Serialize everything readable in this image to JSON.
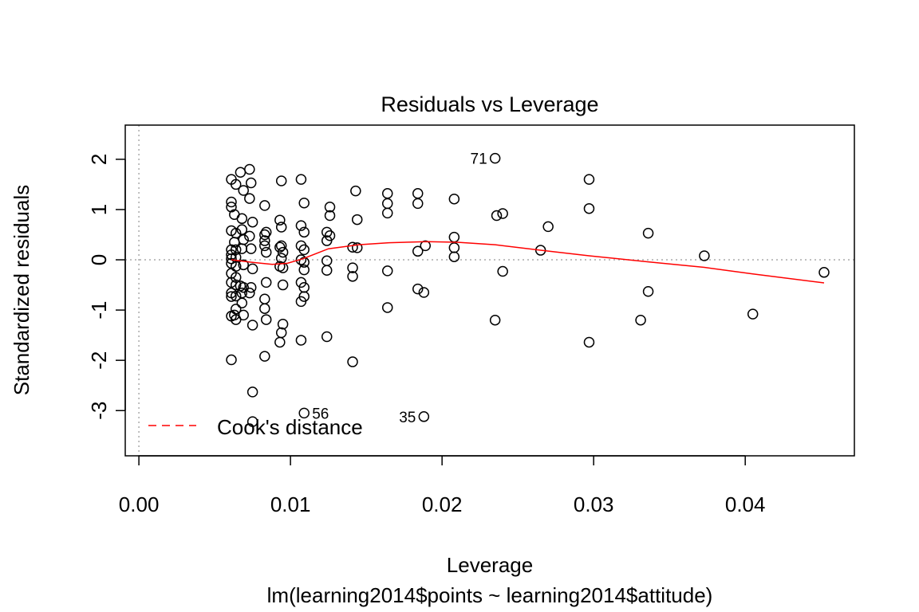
{
  "chart_data": {
    "type": "scatter",
    "title": "Residuals vs Leverage",
    "xlabel": "Leverage",
    "subtitle": "lm(learning2014$points ~ learning2014$attitude)",
    "ylabel": "Standardized residuals",
    "xlim": [
      -0.0009,
      0.0472
    ],
    "ylim": [
      -3.9,
      2.68
    ],
    "x_ticks": [
      0.0,
      0.01,
      0.02,
      0.03,
      0.04
    ],
    "x_tick_labels": [
      "0.00",
      "0.01",
      "0.02",
      "0.03",
      "0.04"
    ],
    "y_ticks": [
      -3,
      -2,
      -1,
      0,
      1,
      2
    ],
    "y_tick_labels": [
      "-3",
      "-2",
      "-1",
      "0",
      "1",
      "2"
    ],
    "reference_lines": {
      "x": 0,
      "y": 0,
      "style": "dotted",
      "color": "#aaaaaa"
    },
    "points": [
      [
        0.0061,
        1.6
      ],
      [
        0.0064,
        1.5
      ],
      [
        0.0067,
        1.74
      ],
      [
        0.0073,
        1.8
      ],
      [
        0.0074,
        1.53
      ],
      [
        0.0069,
        1.38
      ],
      [
        0.0073,
        1.22
      ],
      [
        0.0061,
        1.15
      ],
      [
        0.0061,
        1.05
      ],
      [
        0.0063,
        0.9
      ],
      [
        0.0068,
        0.82
      ],
      [
        0.0075,
        0.75
      ],
      [
        0.0061,
        0.58
      ],
      [
        0.0064,
        0.53
      ],
      [
        0.0068,
        0.6
      ],
      [
        0.0073,
        0.47
      ],
      [
        0.0069,
        0.4
      ],
      [
        0.0063,
        0.35
      ],
      [
        0.0061,
        0.2
      ],
      [
        0.0064,
        0.2
      ],
      [
        0.0068,
        0.22
      ],
      [
        0.0074,
        0.22
      ],
      [
        0.0061,
        0.1
      ],
      [
        0.0061,
        0.02
      ],
      [
        0.0064,
        0.05
      ],
      [
        0.0061,
        -0.07
      ],
      [
        0.0064,
        -0.13
      ],
      [
        0.0069,
        -0.1
      ],
      [
        0.0075,
        -0.18
      ],
      [
        0.0061,
        -0.27
      ],
      [
        0.0064,
        -0.35
      ],
      [
        0.0061,
        -0.45
      ],
      [
        0.0064,
        -0.5
      ],
      [
        0.0067,
        -0.52
      ],
      [
        0.0069,
        -0.55
      ],
      [
        0.0074,
        -0.55
      ],
      [
        0.0061,
        -0.66
      ],
      [
        0.0064,
        -0.72
      ],
      [
        0.0068,
        -0.66
      ],
      [
        0.0073,
        -0.66
      ],
      [
        0.0061,
        -0.73
      ],
      [
        0.0068,
        -0.86
      ],
      [
        0.0064,
        -0.98
      ],
      [
        0.0063,
        -1.1
      ],
      [
        0.0061,
        -1.12
      ],
      [
        0.0064,
        -1.19
      ],
      [
        0.0069,
        -1.1
      ],
      [
        0.0075,
        -1.3
      ],
      [
        0.0061,
        -1.99
      ],
      [
        0.0075,
        -2.63
      ],
      [
        0.0075,
        -3.22
      ],
      [
        0.0083,
        1.08
      ],
      [
        0.0084,
        0.55
      ],
      [
        0.0083,
        0.5
      ],
      [
        0.0083,
        0.38
      ],
      [
        0.0083,
        0.28
      ],
      [
        0.0084,
        0.15
      ],
      [
        0.0084,
        -0.45
      ],
      [
        0.0083,
        -0.78
      ],
      [
        0.0083,
        -0.97
      ],
      [
        0.0084,
        -1.19
      ],
      [
        0.0083,
        -1.92
      ],
      [
        0.0094,
        1.57
      ],
      [
        0.0093,
        0.79
      ],
      [
        0.0094,
        0.65
      ],
      [
        0.0094,
        0.28
      ],
      [
        0.0093,
        0.25
      ],
      [
        0.0095,
        0.15
      ],
      [
        0.0094,
        0.03
      ],
      [
        0.0093,
        -0.13
      ],
      [
        0.0095,
        -0.16
      ],
      [
        0.0095,
        -0.5
      ],
      [
        0.0095,
        -1.28
      ],
      [
        0.0094,
        -1.45
      ],
      [
        0.0093,
        -1.64
      ],
      [
        0.0107,
        1.6
      ],
      [
        0.0109,
        1.13
      ],
      [
        0.0107,
        0.68
      ],
      [
        0.0109,
        0.55
      ],
      [
        0.0107,
        0.28
      ],
      [
        0.0109,
        0.2
      ],
      [
        0.0107,
        0.0
      ],
      [
        0.0109,
        -0.05
      ],
      [
        0.0109,
        -0.2
      ],
      [
        0.0107,
        -0.45
      ],
      [
        0.0109,
        -0.55
      ],
      [
        0.0109,
        -0.73
      ],
      [
        0.0107,
        -0.83
      ],
      [
        0.0107,
        -1.6
      ],
      [
        0.0109,
        -3.05
      ],
      [
        0.0126,
        1.05
      ],
      [
        0.0126,
        0.88
      ],
      [
        0.0124,
        0.55
      ],
      [
        0.0126,
        0.48
      ],
      [
        0.0124,
        0.38
      ],
      [
        0.0124,
        -0.02
      ],
      [
        0.0124,
        -0.21
      ],
      [
        0.0124,
        -1.53
      ],
      [
        0.0143,
        1.37
      ],
      [
        0.0144,
        0.8
      ],
      [
        0.0141,
        0.25
      ],
      [
        0.0144,
        0.24
      ],
      [
        0.0141,
        -0.16
      ],
      [
        0.0141,
        -0.33
      ],
      [
        0.0141,
        -2.03
      ],
      [
        0.0164,
        1.32
      ],
      [
        0.0164,
        1.12
      ],
      [
        0.0164,
        0.93
      ],
      [
        0.0164,
        -0.22
      ],
      [
        0.0164,
        -0.95
      ],
      [
        0.0184,
        1.32
      ],
      [
        0.0184,
        1.12
      ],
      [
        0.0189,
        0.28
      ],
      [
        0.0184,
        0.17
      ],
      [
        0.0184,
        -0.58
      ],
      [
        0.0188,
        -0.65
      ],
      [
        0.0188,
        -3.12
      ],
      [
        0.0208,
        1.21
      ],
      [
        0.0208,
        0.45
      ],
      [
        0.0208,
        0.24
      ],
      [
        0.0208,
        0.06
      ],
      [
        0.0235,
        2.02
      ],
      [
        0.0236,
        0.88
      ],
      [
        0.024,
        0.92
      ],
      [
        0.024,
        -0.23
      ],
      [
        0.0235,
        -1.2
      ],
      [
        0.0265,
        0.19
      ],
      [
        0.027,
        0.66
      ],
      [
        0.0297,
        1.6
      ],
      [
        0.0297,
        1.02
      ],
      [
        0.0297,
        -1.64
      ],
      [
        0.0331,
        -1.2
      ],
      [
        0.0336,
        0.53
      ],
      [
        0.0336,
        -0.63
      ],
      [
        0.0373,
        0.08
      ],
      [
        0.0405,
        -1.08
      ],
      [
        0.0452,
        -0.25
      ]
    ],
    "point_labels": [
      {
        "text": "71",
        "x": 0.0235,
        "y": 2.02,
        "side": "left"
      },
      {
        "text": "56",
        "x": 0.0109,
        "y": -3.05,
        "side": "right"
      },
      {
        "text": "35",
        "x": 0.0188,
        "y": -3.12,
        "side": "left"
      }
    ],
    "smooth_line": {
      "color": "#ff0000",
      "points": [
        [
          0.0061,
          0.0
        ],
        [
          0.0075,
          -0.05
        ],
        [
          0.0088,
          -0.09
        ],
        [
          0.0098,
          -0.07
        ],
        [
          0.0108,
          0.02
        ],
        [
          0.0125,
          0.22
        ],
        [
          0.0145,
          0.3
        ],
        [
          0.0165,
          0.34
        ],
        [
          0.019,
          0.36
        ],
        [
          0.021,
          0.35
        ],
        [
          0.0235,
          0.3
        ],
        [
          0.0265,
          0.19
        ],
        [
          0.0297,
          0.08
        ],
        [
          0.0336,
          -0.04
        ],
        [
          0.0373,
          -0.15
        ],
        [
          0.0405,
          -0.28
        ],
        [
          0.0452,
          -0.46
        ]
      ]
    },
    "legend": {
      "position": "bottom-left",
      "entries": [
        {
          "name": "Cook's distance",
          "style": "dashed",
          "color": "#ff0000"
        }
      ]
    }
  }
}
